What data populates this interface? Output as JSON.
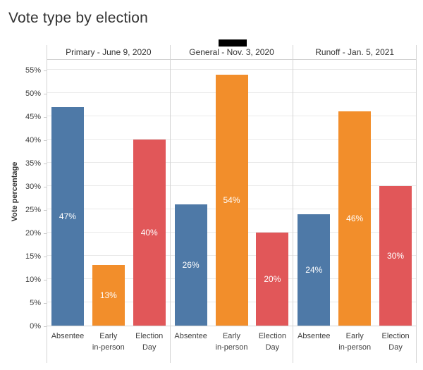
{
  "title": "Vote type by election",
  "chart_data": {
    "type": "bar",
    "title": "Vote type by election",
    "ylabel": "Vote percentage",
    "ylim": [
      0,
      57.5
    ],
    "yticks": [
      "0%",
      "5%",
      "10%",
      "15%",
      "20%",
      "25%",
      "30%",
      "35%",
      "40%",
      "45%",
      "50%",
      "55%"
    ],
    "ytick_values": [
      0,
      5,
      10,
      15,
      20,
      25,
      30,
      35,
      40,
      45,
      50,
      55
    ],
    "grid": true,
    "legend_position": "none",
    "categories": [
      "Absentee",
      "Early in-person",
      "Election Day"
    ],
    "category_label_lines": [
      [
        "Absentee"
      ],
      [
        "Early",
        "in-person"
      ],
      [
        "Election",
        "Day"
      ]
    ],
    "bar_colors": [
      "#4e79a7",
      "#f28e2b",
      "#e15759"
    ],
    "panels": [
      {
        "header": "Primary - June 9, 2020",
        "values": [
          47,
          13,
          40
        ],
        "value_labels": [
          "47%",
          "13%",
          "40%"
        ]
      },
      {
        "header": "General - Nov. 3, 2020",
        "values": [
          26,
          54,
          20
        ],
        "value_labels": [
          "26%",
          "54%",
          "20%"
        ]
      },
      {
        "header": "Runoff - Jan. 5, 2021",
        "values": [
          24,
          46,
          30
        ],
        "value_labels": [
          "24%",
          "46%",
          "30%"
        ]
      }
    ]
  },
  "colors": {
    "background": "#ffffff",
    "title_text": "#333333",
    "axis_text": "#3f3f3f",
    "header_text": "#333333",
    "gridline": "#e9e9e9",
    "axis_line": "#d4d4d4",
    "bar_label_text": "#ffffff",
    "redaction": "#000000"
  }
}
